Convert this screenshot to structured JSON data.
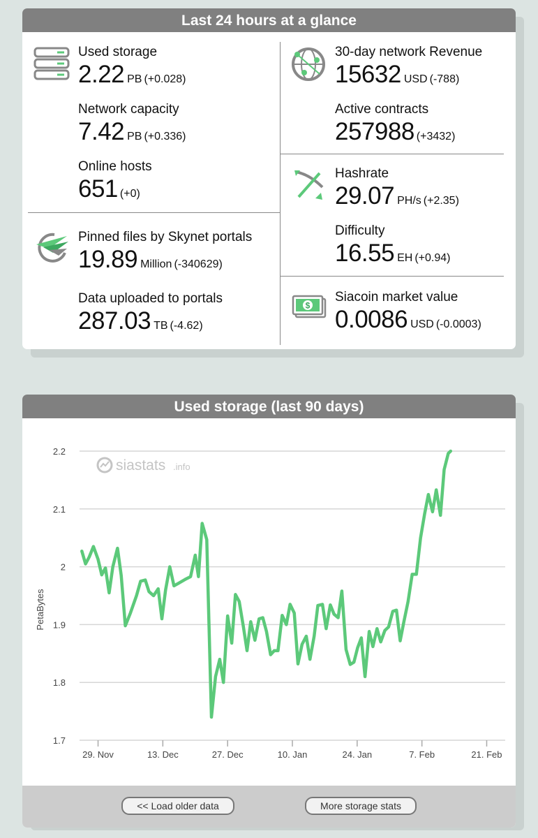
{
  "glance": {
    "title": "Last 24 hours at a glance",
    "used_storage": {
      "label": "Used storage",
      "value": "2.22",
      "unit": "PB",
      "delta": "(+0.028)"
    },
    "network_capacity": {
      "label": "Network capacity",
      "value": "7.42",
      "unit": "PB",
      "delta": "(+0.336)"
    },
    "online_hosts": {
      "label": "Online hosts",
      "value": "651",
      "unit": "",
      "delta": "(+0)"
    },
    "pinned_files": {
      "label": "Pinned files by Skynet portals",
      "value": "19.89",
      "unit": "Million",
      "delta": "(-340629)"
    },
    "data_uploaded": {
      "label": "Data uploaded to portals",
      "value": "287.03",
      "unit": "TB",
      "delta": "(-4.62)"
    },
    "revenue": {
      "label": "30-day network Revenue",
      "value": "15632",
      "unit": "USD",
      "delta": "(-788)"
    },
    "active_contracts": {
      "label": "Active contracts",
      "value": "257988",
      "unit": "",
      "delta": "(+3432)"
    },
    "hashrate": {
      "label": "Hashrate",
      "value": "29.07",
      "unit": "PH/s",
      "delta": "(+2.35)"
    },
    "difficulty": {
      "label": "Difficulty",
      "value": "16.55",
      "unit": "EH",
      "delta": "(+0.94)"
    },
    "market_value": {
      "label": "Siacoin market value",
      "value": "0.0086",
      "unit": "USD",
      "delta": "(-0.0003)"
    }
  },
  "chart_card": {
    "title": "Used storage (last 90 days)",
    "watermark": "siastats",
    "watermark_suffix": ".info",
    "load_older_label": "<< Load older data",
    "more_stats_label": "More storage stats"
  },
  "colors": {
    "line": "#5cc97a",
    "header": "#808080",
    "accent_green": "#5cc97a"
  },
  "chart_data": {
    "type": "line",
    "title": "Used storage (last 90 days)",
    "xlabel": "",
    "ylabel": "PetaBytes",
    "ylim": [
      1.7,
      2.2
    ],
    "yticks": [
      1.7,
      1.8,
      1.9,
      2.0,
      2.1,
      2.2
    ],
    "ytick_labels": [
      "1.7",
      "1.8",
      "1.9",
      "2",
      "2.1",
      "2.2"
    ],
    "xticks": [
      "29. Nov",
      "13. Dec",
      "27. Dec",
      "10. Jan",
      "24. Jan",
      "7. Feb",
      "21. Feb"
    ],
    "xlim_days": [
      -4,
      88
    ],
    "x_origin_label": "29. Nov",
    "grid": true,
    "series": [
      {
        "name": "",
        "points": [
          [
            -3.5,
            2.027
          ],
          [
            -2.7,
            2.005
          ],
          [
            -1.9,
            2.017
          ],
          [
            -1.0,
            2.035
          ],
          [
            0.0,
            2.013
          ],
          [
            0.8,
            1.986
          ],
          [
            1.6,
            1.998
          ],
          [
            2.4,
            1.955
          ],
          [
            3.2,
            2.0
          ],
          [
            4.2,
            2.032
          ],
          [
            5.0,
            1.985
          ],
          [
            5.9,
            1.898
          ],
          [
            7.0,
            1.92
          ],
          [
            8.3,
            1.95
          ],
          [
            9.2,
            1.975
          ],
          [
            10.2,
            1.977
          ],
          [
            11.0,
            1.957
          ],
          [
            12.0,
            1.95
          ],
          [
            13.0,
            1.962
          ],
          [
            13.8,
            1.91
          ],
          [
            14.6,
            1.96
          ],
          [
            15.5,
            2.0
          ],
          [
            16.4,
            1.967
          ],
          [
            17.5,
            1.972
          ],
          [
            18.8,
            1.978
          ],
          [
            20.0,
            1.983
          ],
          [
            21.0,
            2.02
          ],
          [
            21.7,
            1.983
          ],
          [
            22.5,
            2.075
          ],
          [
            23.5,
            2.047
          ],
          [
            24.5,
            1.74
          ],
          [
            25.4,
            1.81
          ],
          [
            26.3,
            1.84
          ],
          [
            27.1,
            1.8
          ],
          [
            28.0,
            1.915
          ],
          [
            28.9,
            1.868
          ],
          [
            29.7,
            1.952
          ],
          [
            30.5,
            1.94
          ],
          [
            31.4,
            1.897
          ],
          [
            32.2,
            1.855
          ],
          [
            33.0,
            1.905
          ],
          [
            33.9,
            1.873
          ],
          [
            34.8,
            1.91
          ],
          [
            35.6,
            1.912
          ],
          [
            36.4,
            1.888
          ],
          [
            37.3,
            1.848
          ],
          [
            38.1,
            1.855
          ],
          [
            38.9,
            1.855
          ],
          [
            39.8,
            1.916
          ],
          [
            40.7,
            1.9
          ],
          [
            41.5,
            1.935
          ],
          [
            42.4,
            1.92
          ],
          [
            43.2,
            1.832
          ],
          [
            44.1,
            1.866
          ],
          [
            45.0,
            1.88
          ],
          [
            45.8,
            1.84
          ],
          [
            46.7,
            1.88
          ],
          [
            47.5,
            1.933
          ],
          [
            48.5,
            1.935
          ],
          [
            49.3,
            1.893
          ],
          [
            50.2,
            1.934
          ],
          [
            51.0,
            1.918
          ],
          [
            51.9,
            1.912
          ],
          [
            52.7,
            1.958
          ],
          [
            53.6,
            1.857
          ],
          [
            54.5,
            1.831
          ],
          [
            55.3,
            1.835
          ],
          [
            56.1,
            1.86
          ],
          [
            56.9,
            1.877
          ],
          [
            57.7,
            1.81
          ],
          [
            58.6,
            1.888
          ],
          [
            59.4,
            1.862
          ],
          [
            60.3,
            1.893
          ],
          [
            61.1,
            1.87
          ],
          [
            62.0,
            1.89
          ],
          [
            62.8,
            1.896
          ],
          [
            63.7,
            1.923
          ],
          [
            64.5,
            1.925
          ],
          [
            65.3,
            1.872
          ],
          [
            66.1,
            1.905
          ],
          [
            67.0,
            1.94
          ],
          [
            67.9,
            1.987
          ],
          [
            68.8,
            1.987
          ],
          [
            69.7,
            2.05
          ],
          [
            70.6,
            2.092
          ],
          [
            71.4,
            2.125
          ],
          [
            72.3,
            2.095
          ],
          [
            73.1,
            2.133
          ],
          [
            74.0,
            2.089
          ],
          [
            74.8,
            2.168
          ],
          [
            75.7,
            2.196
          ],
          [
            76.2,
            2.2
          ]
        ]
      }
    ]
  }
}
